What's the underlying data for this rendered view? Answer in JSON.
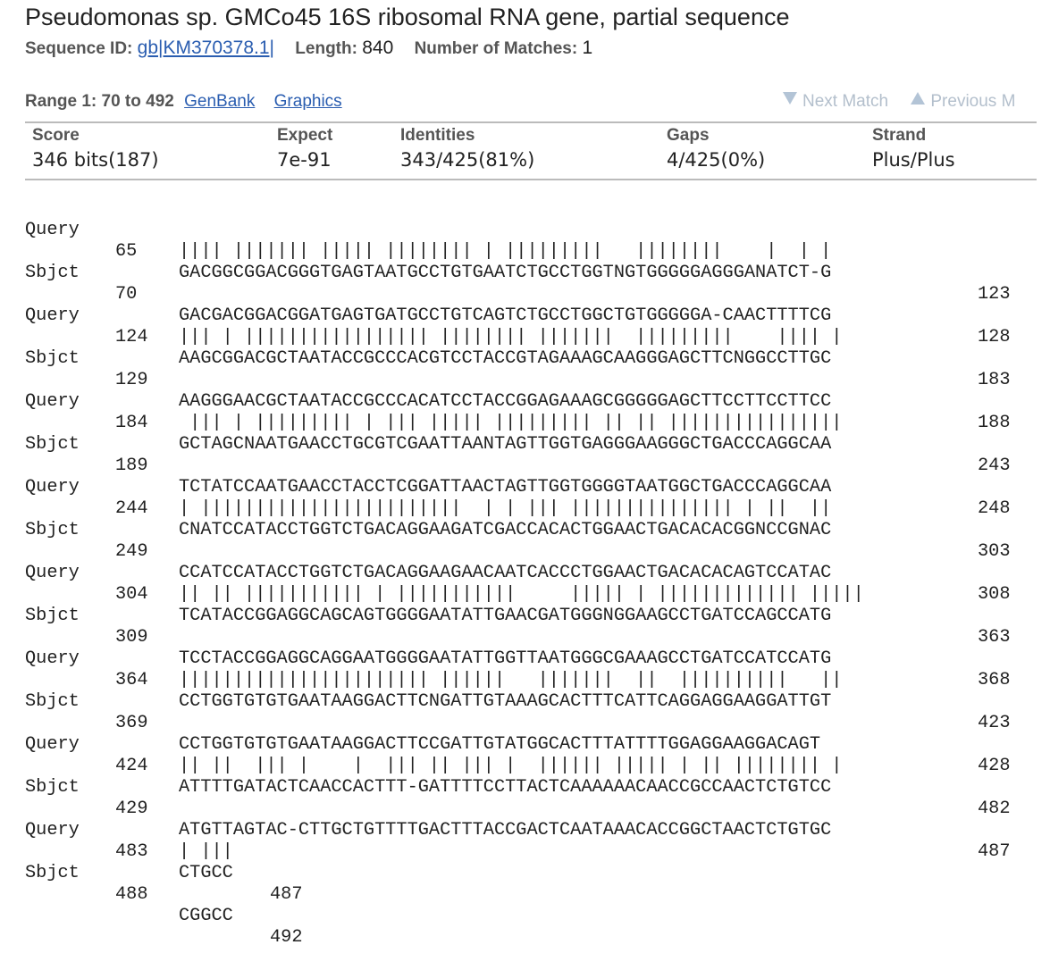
{
  "title": "Pseudomonas sp. GMCo45 16S ribosomal RNA gene, partial sequence",
  "meta": {
    "seq_id_label": "Sequence ID:",
    "seq_id_value": "gb|KM370378.1|",
    "length_label": "Length:",
    "length_value": "840",
    "matches_label": "Number of Matches:",
    "matches_value": "1"
  },
  "range": {
    "label": "Range 1: 70 to 492",
    "genbank_link": "GenBank",
    "graphics_link": "Graphics"
  },
  "nav": {
    "next_label": "Next Match",
    "prev_label": "Previous M"
  },
  "stats": {
    "score_label": "Score",
    "score_value": "346 bits(187)",
    "expect_label": "Expect",
    "expect_value": "7e-91",
    "identities_label": "Identities",
    "identities_value": "343/425(81%)",
    "gaps_label": "Gaps",
    "gaps_value": "4/425(0%)",
    "strand_label": "Strand",
    "strand_value": "Plus/Plus"
  },
  "alignment": [
    {
      "query_label": "Query",
      "query_start": "65",
      "query_seq": "GACGGCGGACGGGTGAGTAATGCCTGTGAATCTGCCTGGTNGTGGGGGAGGGANATCT-G",
      "query_end": "123",
      "match": "|||| ||||||| ||||| |||||||| | |||||||||   ||||||||    |  | |",
      "sbjct_label": "Sbjct",
      "sbjct_start": "70",
      "sbjct_seq": "GACGACGGACGGATGAGTGATGCCTGTCAGTCTGCCTGGCTGTGGGGGA-CAACTTTTCG",
      "sbjct_end": "128"
    },
    {
      "query_label": "Query",
      "query_start": "124",
      "query_seq": "AAGCGGACGCTAATACCGCCCACGTCCTACCGTAGAAAGCAAGGGAGCTTCNGGCCTTGC",
      "query_end": "183",
      "match": "||| | ||||||||||||||||| |||||||| |||||||  |||||||||    |||| |",
      "sbjct_label": "Sbjct",
      "sbjct_start": "129",
      "sbjct_seq": "AAGGGAACGCTAATACCGCCCACATCCTACCGGAGAAAGCGGGGGAGCTTCCTTCCTTCC",
      "sbjct_end": "188"
    },
    {
      "query_label": "Query",
      "query_start": "184",
      "query_seq": "GCTAGCNAATGAACCTGCGTCGAATTAANTAGTTGGTGAGGGAAGGGCTGACCCAGGCAA",
      "query_end": "243",
      "match": " ||| | ||||||||| | ||| ||||| ||||||||| || || ||||||||||||||||",
      "sbjct_label": "Sbjct",
      "sbjct_start": "189",
      "sbjct_seq": "TCTATCCAATGAACCTACCTCGGATTAACTAGTTGGTGGGGTAATGGCTGACCCAGGCAA",
      "sbjct_end": "248"
    },
    {
      "query_label": "Query",
      "query_start": "244",
      "query_seq": "CNATCCATACCTGGTCTGACAGGAAGATCGACCACACTGGAACTGACACACGGNCCGNAC",
      "query_end": "303",
      "match": "| ||||||||||||||||||||||||  | | ||| ||||||||||||||| | ||  ||",
      "sbjct_label": "Sbjct",
      "sbjct_start": "249",
      "sbjct_seq": "CCATCCATACCTGGTCTGACAGGAAGAACAATCACCCTGGAACTGACACACAGTCCATAC",
      "sbjct_end": "308"
    },
    {
      "query_label": "Query",
      "query_start": "304",
      "query_seq": "TCATACCGGAGGCAGCAGTGGGGAATATTGAACGATGGGNGGAAGCCTGATCCAGCCATG",
      "query_end": "363",
      "match": "|| || ||||||||||| | |||||||||||     ||||| | ||||||||||||| |||||",
      "sbjct_label": "Sbjct",
      "sbjct_start": "309",
      "sbjct_seq": "TCCTACCGGAGGCAGGAATGGGGAATATTGGTTAATGGGCGAAAGCCTGATCCATCCATG",
      "sbjct_end": "368"
    },
    {
      "query_label": "Query",
      "query_start": "364",
      "query_seq": "CCTGGTGTGTGAATAAGGACTTCNGATTGTAAAGCACTTTCATTCAGGAGGAAGGATTGT",
      "query_end": "423",
      "match": "||||||||||||||||||||||| ||||||   |||||||  ||  ||||||||||   ||",
      "sbjct_label": "Sbjct",
      "sbjct_start": "369",
      "sbjct_seq": "CCTGGTGTGTGAATAAGGACTTCCGATTGTATGGCACTTTATTTTGGAGGAAGGACAGT",
      "sbjct_end": "428"
    },
    {
      "query_label": "Query",
      "query_start": "424",
      "query_seq": "ATTTTGATACTCAACCACTTT-GATTTTCCTTACTCAAAAAACAACCGCCAACTCTGTCC",
      "query_end": "482",
      "match": "|| ||  ||| |    |  ||| || ||| |  |||||| ||||| | || |||||||| |",
      "sbjct_label": "Sbjct",
      "sbjct_start": "429",
      "sbjct_seq": "ATGTTAGTAC-CTTGCTGTTTTGACTTTACCGACTCAATAAACACCGGCTAACTCTGTGC",
      "sbjct_end": "487"
    },
    {
      "query_label": "Query",
      "query_start": "483",
      "query_seq": "CTGCC",
      "query_end": "487",
      "match": "| |||",
      "sbjct_label": "Sbjct",
      "sbjct_start": "488",
      "sbjct_seq": "CGGCC",
      "sbjct_end": "492"
    }
  ]
}
